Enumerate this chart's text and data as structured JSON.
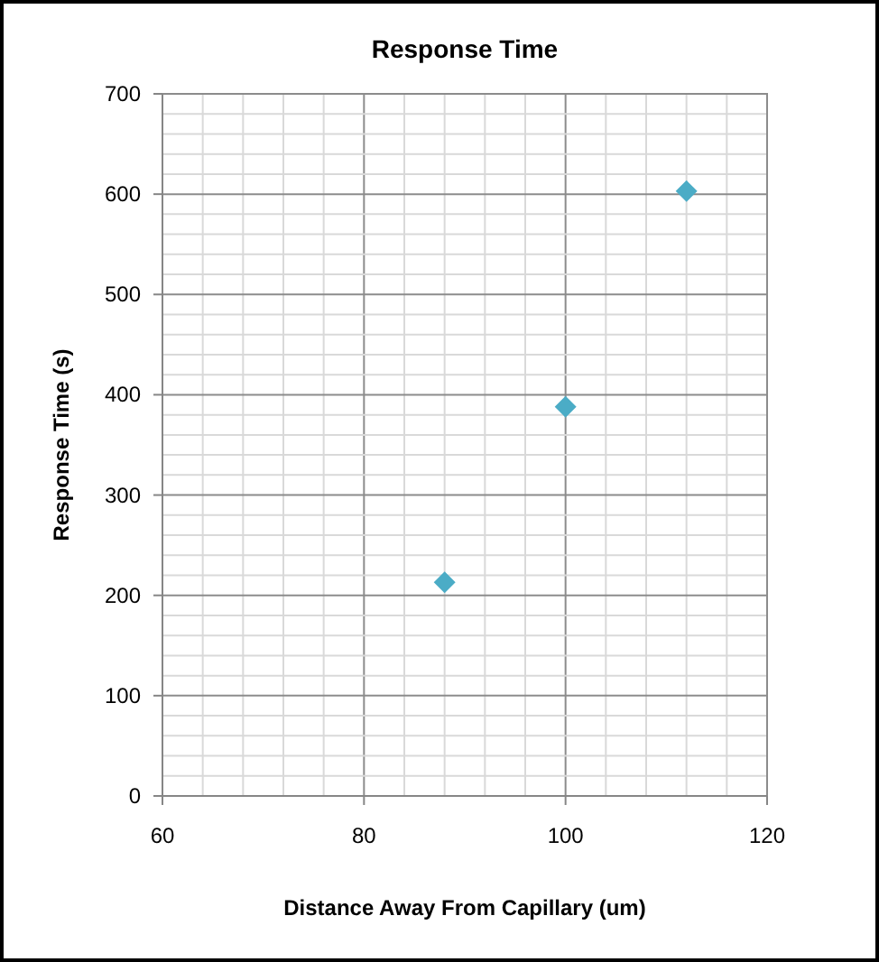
{
  "chart_data": {
    "type": "scatter",
    "title": "Response Time",
    "xlabel": "Distance Away From Capillary (um)",
    "ylabel": "Response Time (s)",
    "x": [
      88,
      100,
      112
    ],
    "series": [
      {
        "color": "#4bacc6",
        "values": [
          213,
          388,
          603
        ]
      }
    ],
    "marker": "diamond",
    "grid": true,
    "xlim": [
      60,
      120
    ],
    "ylim": [
      0,
      700
    ],
    "xticks": [
      60,
      {
        "value": 64,
        "label": null
      },
      {
        "value": 68,
        "label": null
      },
      {
        "value": 72,
        "label": null
      },
      {
        "value": 76,
        "label": null
      },
      80,
      {
        "value": 84,
        "label": null
      },
      {
        "value": 88,
        "label": null
      },
      {
        "value": 92,
        "label": null
      },
      {
        "value": 96,
        "label": null
      },
      100,
      {
        "value": 104,
        "label": null
      },
      {
        "value": 108,
        "label": null
      },
      {
        "value": 112,
        "label": null
      },
      {
        "value": 116,
        "label": null
      },
      120
    ],
    "yticks": [
      0,
      {
        "value": 20,
        "label": null
      },
      {
        "value": 40,
        "label": null
      },
      {
        "value": 60,
        "label": null
      },
      {
        "value": 80,
        "label": null
      },
      100,
      {
        "value": 120,
        "label": null
      },
      {
        "value": 140,
        "label": null
      },
      {
        "value": 160,
        "label": null
      },
      {
        "value": 180,
        "label": null
      },
      200,
      {
        "value": 220,
        "label": null
      },
      {
        "value": 240,
        "label": null
      },
      {
        "value": 260,
        "label": null
      },
      {
        "value": 280,
        "label": null
      },
      300,
      {
        "value": 320,
        "label": null
      },
      {
        "value": 340,
        "label": null
      },
      {
        "value": 360,
        "label": null
      },
      {
        "value": 380,
        "label": null
      },
      400,
      {
        "value": 420,
        "label": null
      },
      {
        "value": 440,
        "label": null
      },
      {
        "value": 460,
        "label": null
      },
      {
        "value": 480,
        "label": null
      },
      500,
      {
        "value": 520,
        "label": null
      },
      {
        "value": 540,
        "label": null
      },
      {
        "value": 560,
        "label": null
      },
      {
        "value": 580,
        "label": null
      },
      600,
      {
        "value": 620,
        "label": null
      },
      {
        "value": 640,
        "label": null
      },
      {
        "value": 660,
        "label": null
      },
      {
        "value": 680,
        "label": null
      },
      700
    ]
  }
}
